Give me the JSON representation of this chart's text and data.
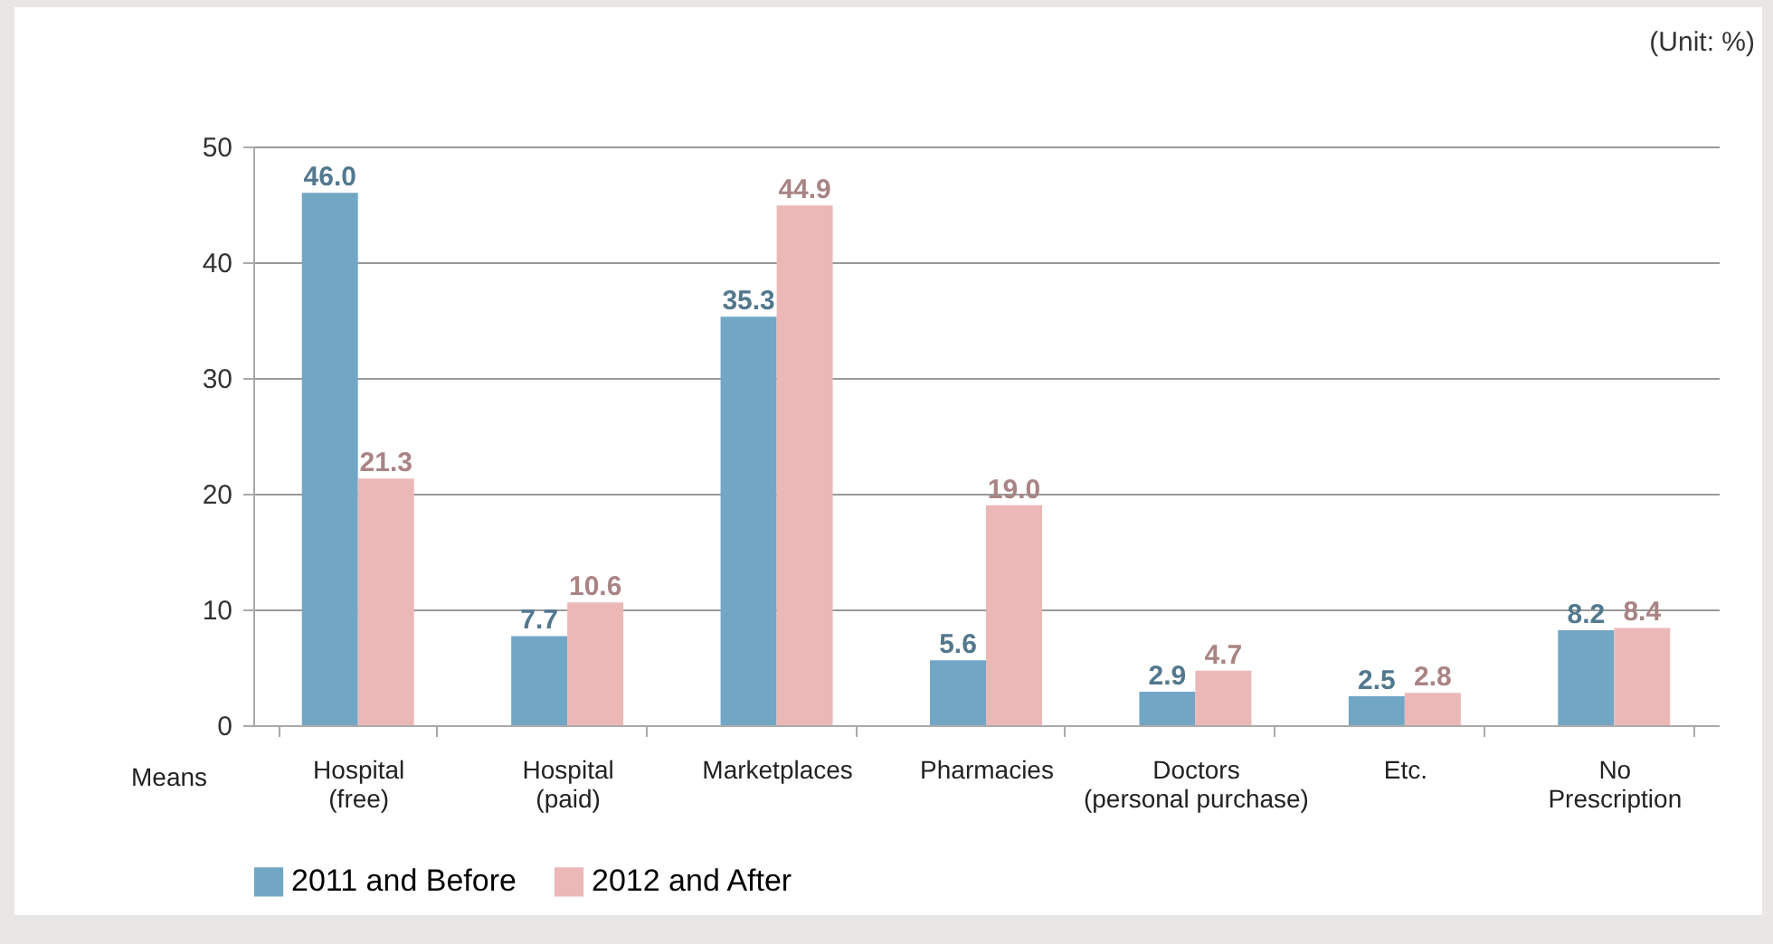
{
  "chart_data": {
    "type": "bar",
    "xlabel": "Means",
    "annotations": [
      "(Unit: %)"
    ],
    "categories": [
      "Hospital (free)",
      "Hospital (paid)",
      "Marketplaces",
      "Pharmacies",
      "Doctors (personal purchase)",
      "Etc.",
      "No Prescription"
    ],
    "series": [
      {
        "name": "2011 and Before",
        "color": "#72a6c5",
        "values": [
          46.0,
          7.7,
          35.3,
          5.6,
          2.9,
          2.5,
          8.2
        ],
        "value_labels": [
          "46.0",
          "7.7",
          "35.3",
          "5.6",
          "2.9",
          "2.5",
          "8.2"
        ]
      },
      {
        "name": "2012 and After",
        "color": "#ebb8b7",
        "values": [
          21.3,
          10.6,
          44.9,
          19.0,
          4.7,
          2.8,
          8.4
        ],
        "value_labels": [
          "21.3",
          "10.6",
          "44.9",
          "19.0",
          "4.7",
          "2.8",
          "8.4"
        ]
      }
    ],
    "ylim": [
      0,
      50
    ],
    "yticks": [
      0,
      10,
      20,
      30,
      40,
      50
    ],
    "grid": "y",
    "legend": "bottom"
  }
}
